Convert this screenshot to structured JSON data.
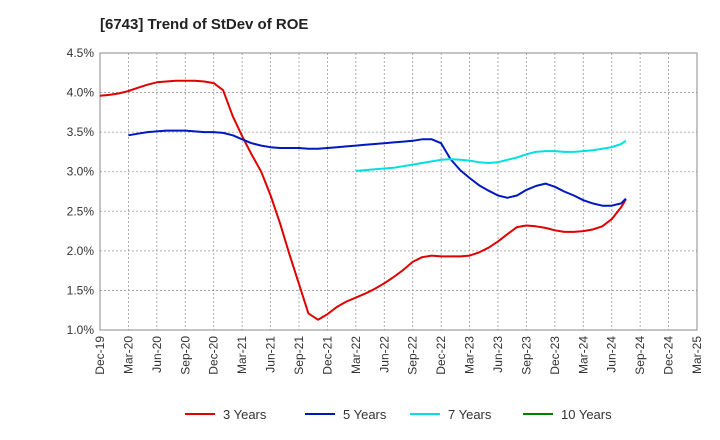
{
  "chart_data": {
    "type": "line",
    "title": "[6743]  Trend of StDev of ROE",
    "xlabel": "",
    "ylabel": "",
    "ylim": [
      1.0,
      4.5
    ],
    "yticks": [
      "1.0%",
      "1.5%",
      "2.0%",
      "2.5%",
      "3.0%",
      "3.5%",
      "4.0%",
      "4.5%"
    ],
    "x": [
      "Dec-19",
      "Mar-20",
      "Jun-20",
      "Sep-20",
      "Dec-20",
      "Mar-21",
      "Jun-21",
      "Sep-21",
      "Dec-21",
      "Mar-22",
      "Jun-22",
      "Sep-22",
      "Dec-22",
      "Mar-23",
      "Jun-23",
      "Sep-23",
      "Dec-23",
      "Mar-24",
      "Jun-24",
      "Sep-24",
      "Dec-24",
      "Mar-25"
    ],
    "grid": true,
    "legend_position": "bottom",
    "series": [
      {
        "name": "3 Years",
        "color": "#e00000",
        "points": [
          [
            0,
            3.96
          ],
          [
            0.33,
            3.97
          ],
          [
            0.67,
            3.99
          ],
          [
            1,
            4.02
          ],
          [
            1.33,
            4.06
          ],
          [
            1.67,
            4.1
          ],
          [
            2,
            4.13
          ],
          [
            2.33,
            4.14
          ],
          [
            2.67,
            4.15
          ],
          [
            3,
            4.15
          ],
          [
            3.33,
            4.15
          ],
          [
            3.67,
            4.14
          ],
          [
            4,
            4.12
          ],
          [
            4.33,
            4.03
          ],
          [
            4.67,
            3.7
          ],
          [
            5,
            3.45
          ],
          [
            5.33,
            3.22
          ],
          [
            5.67,
            3.0
          ],
          [
            6,
            2.7
          ],
          [
            6.33,
            2.35
          ],
          [
            6.67,
            1.95
          ],
          [
            7,
            1.58
          ],
          [
            7.33,
            1.21
          ],
          [
            7.67,
            1.13
          ],
          [
            8,
            1.2
          ],
          [
            8.33,
            1.29
          ],
          [
            8.67,
            1.36
          ],
          [
            9,
            1.41
          ],
          [
            9.33,
            1.46
          ],
          [
            9.67,
            1.52
          ],
          [
            10,
            1.59
          ],
          [
            10.33,
            1.67
          ],
          [
            10.67,
            1.76
          ],
          [
            11,
            1.86
          ],
          [
            11.33,
            1.92
          ],
          [
            11.67,
            1.94
          ],
          [
            12,
            1.93
          ],
          [
            12.33,
            1.93
          ],
          [
            12.67,
            1.93
          ],
          [
            13,
            1.94
          ],
          [
            13.33,
            1.98
          ],
          [
            13.67,
            2.04
          ],
          [
            14,
            2.12
          ],
          [
            14.33,
            2.21
          ],
          [
            14.67,
            2.3
          ],
          [
            15,
            2.32
          ],
          [
            15.33,
            2.31
          ],
          [
            15.67,
            2.29
          ],
          [
            16,
            2.26
          ],
          [
            16.33,
            2.24
          ],
          [
            16.67,
            2.24
          ],
          [
            17,
            2.25
          ],
          [
            17.33,
            2.27
          ],
          [
            17.67,
            2.31
          ],
          [
            18,
            2.4
          ],
          [
            18.33,
            2.55
          ],
          [
            18.5,
            2.65
          ]
        ]
      },
      {
        "name": "5 Years",
        "color": "#0018c0",
        "points": [
          [
            1,
            3.46
          ],
          [
            1.33,
            3.48
          ],
          [
            1.67,
            3.5
          ],
          [
            2,
            3.51
          ],
          [
            2.33,
            3.52
          ],
          [
            2.67,
            3.52
          ],
          [
            3,
            3.52
          ],
          [
            3.33,
            3.51
          ],
          [
            3.67,
            3.5
          ],
          [
            4,
            3.5
          ],
          [
            4.33,
            3.49
          ],
          [
            4.67,
            3.46
          ],
          [
            5,
            3.41
          ],
          [
            5.33,
            3.36
          ],
          [
            5.67,
            3.33
          ],
          [
            6,
            3.31
          ],
          [
            6.33,
            3.3
          ],
          [
            6.67,
            3.3
          ],
          [
            7,
            3.3
          ],
          [
            7.33,
            3.29
          ],
          [
            7.67,
            3.29
          ],
          [
            8,
            3.3
          ],
          [
            8.33,
            3.31
          ],
          [
            8.67,
            3.32
          ],
          [
            9,
            3.33
          ],
          [
            9.33,
            3.34
          ],
          [
            9.67,
            3.35
          ],
          [
            10,
            3.36
          ],
          [
            10.33,
            3.37
          ],
          [
            10.67,
            3.38
          ],
          [
            11,
            3.39
          ],
          [
            11.33,
            3.41
          ],
          [
            11.67,
            3.41
          ],
          [
            12,
            3.36
          ],
          [
            12.33,
            3.16
          ],
          [
            12.67,
            3.02
          ],
          [
            13,
            2.92
          ],
          [
            13.33,
            2.83
          ],
          [
            13.67,
            2.76
          ],
          [
            14,
            2.7
          ],
          [
            14.33,
            2.67
          ],
          [
            14.67,
            2.7
          ],
          [
            15,
            2.77
          ],
          [
            15.33,
            2.82
          ],
          [
            15.67,
            2.85
          ],
          [
            16,
            2.81
          ],
          [
            16.33,
            2.75
          ],
          [
            16.67,
            2.7
          ],
          [
            17,
            2.64
          ],
          [
            17.33,
            2.6
          ],
          [
            17.67,
            2.57
          ],
          [
            18,
            2.57
          ],
          [
            18.33,
            2.6
          ],
          [
            18.5,
            2.66
          ]
        ]
      },
      {
        "name": "7 Years",
        "color": "#00e0e0",
        "points": [
          [
            9,
            3.01
          ],
          [
            9.33,
            3.02
          ],
          [
            9.67,
            3.03
          ],
          [
            10,
            3.04
          ],
          [
            10.33,
            3.05
          ],
          [
            10.67,
            3.07
          ],
          [
            11,
            3.09
          ],
          [
            11.33,
            3.11
          ],
          [
            11.67,
            3.13
          ],
          [
            12,
            3.15
          ],
          [
            12.33,
            3.16
          ],
          [
            12.67,
            3.15
          ],
          [
            13,
            3.14
          ],
          [
            13.33,
            3.12
          ],
          [
            13.67,
            3.11
          ],
          [
            14,
            3.12
          ],
          [
            14.33,
            3.15
          ],
          [
            14.67,
            3.18
          ],
          [
            15,
            3.22
          ],
          [
            15.33,
            3.25
          ],
          [
            15.67,
            3.26
          ],
          [
            16,
            3.26
          ],
          [
            16.33,
            3.25
          ],
          [
            16.67,
            3.25
          ],
          [
            17,
            3.26
          ],
          [
            17.33,
            3.27
          ],
          [
            17.67,
            3.29
          ],
          [
            18,
            3.31
          ],
          [
            18.33,
            3.35
          ],
          [
            18.5,
            3.39
          ]
        ]
      },
      {
        "name": "10 Years",
        "color": "#008000",
        "points": []
      }
    ]
  }
}
